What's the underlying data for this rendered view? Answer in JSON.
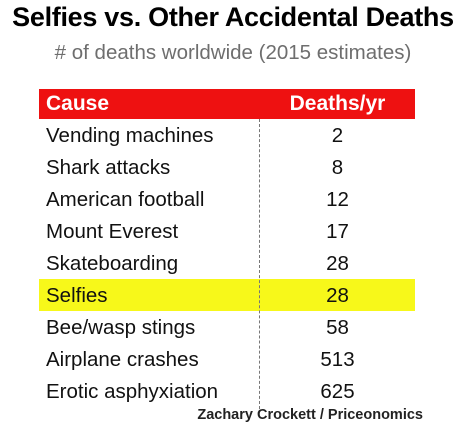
{
  "title": "Selfies vs. Other Accidental Deaths",
  "subtitle": "# of deaths worldwide (2015 estimates)",
  "credit": "Zachary Crockett / Priceonomics",
  "colors": {
    "header_bg": "#ee1111",
    "header_text": "#ffffff",
    "highlight": "#f7f81a"
  },
  "chart_data": {
    "type": "table",
    "columns": [
      "Cause",
      "Deaths/yr"
    ],
    "rows": [
      {
        "cause": "Vending machines",
        "deaths": "2"
      },
      {
        "cause": "Shark attacks",
        "deaths": "8"
      },
      {
        "cause": "American football",
        "deaths": "12"
      },
      {
        "cause": "Mount Everest",
        "deaths": "17"
      },
      {
        "cause": "Skateboarding",
        "deaths": "28"
      },
      {
        "cause": "Selfies",
        "deaths": "28",
        "highlighted": true
      },
      {
        "cause": "Bee/wasp stings",
        "deaths": "58"
      },
      {
        "cause": "Airplane crashes",
        "deaths": "513"
      },
      {
        "cause": "Erotic asphyxiation",
        "deaths": "625"
      }
    ]
  }
}
